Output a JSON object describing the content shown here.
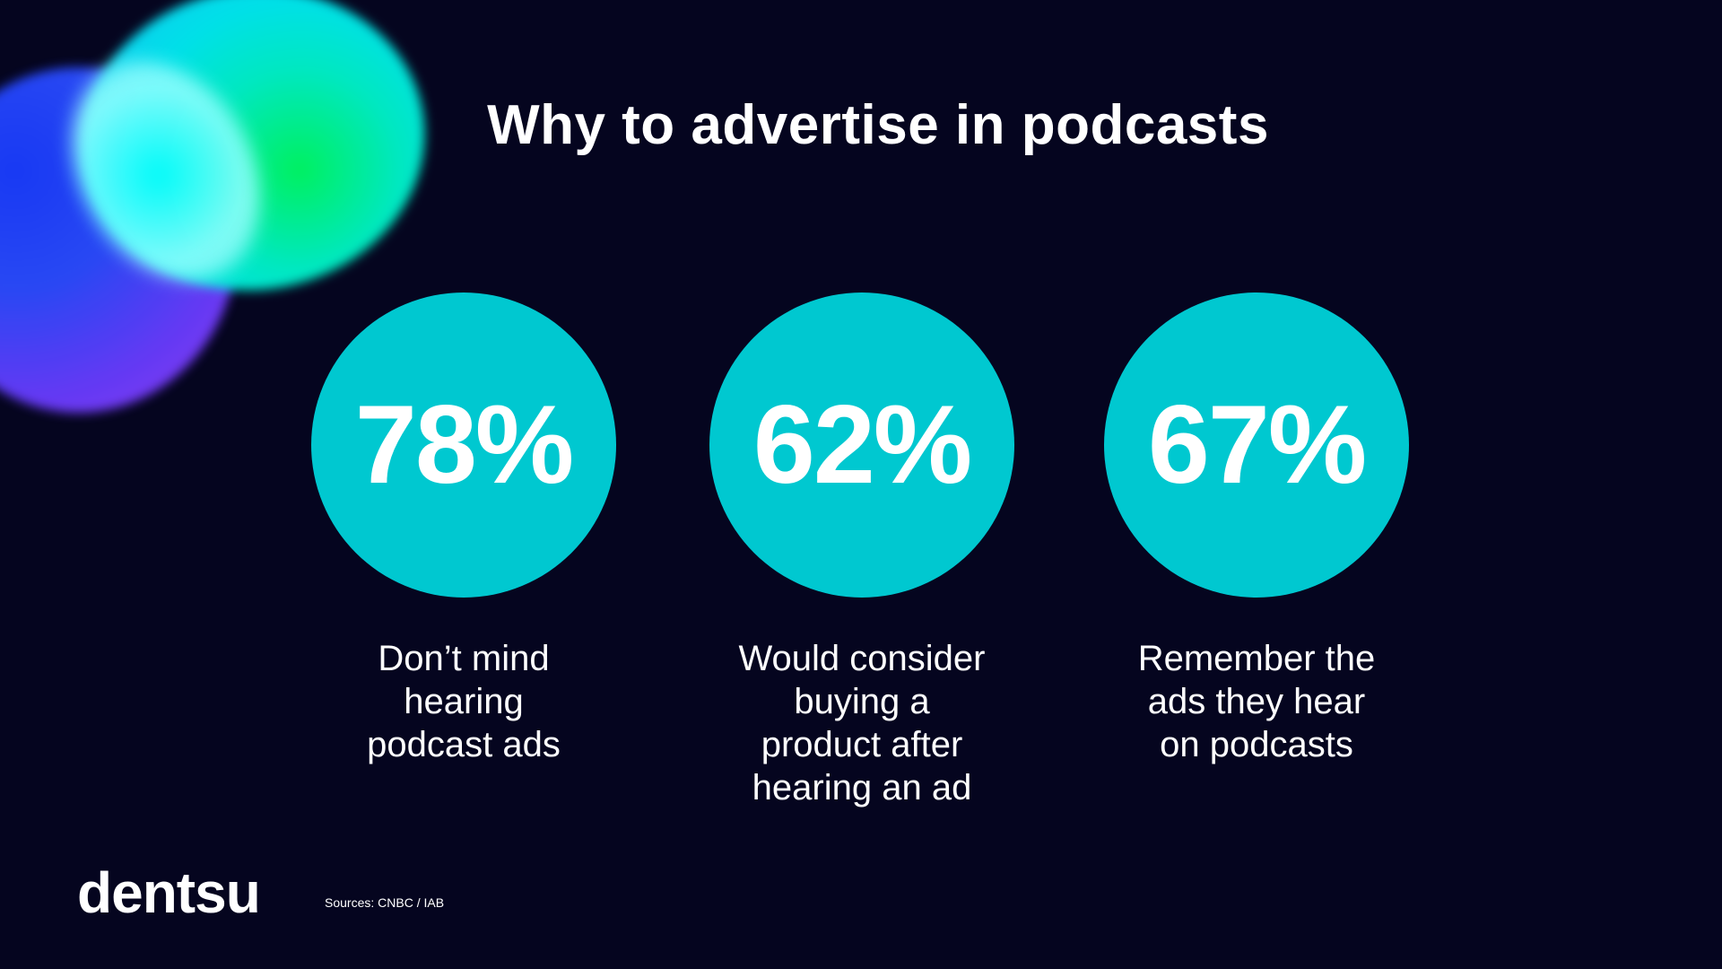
{
  "title": "Why to advertise in podcasts",
  "stats": [
    {
      "value": "78%",
      "caption": "Don’t  mind\nhearing\npodcast ads"
    },
    {
      "value": "62%",
      "caption": "Would consider\nbuying a\nproduct after\nhearing an ad"
    },
    {
      "value": "67%",
      "caption": "Remember the\nads they hear\non podcasts"
    }
  ],
  "logo": "dentsu",
  "sources": "Sources: CNBC / IAB",
  "colors": {
    "background": "#05051f",
    "circle": "#00c8d0",
    "text": "#ffffff"
  }
}
